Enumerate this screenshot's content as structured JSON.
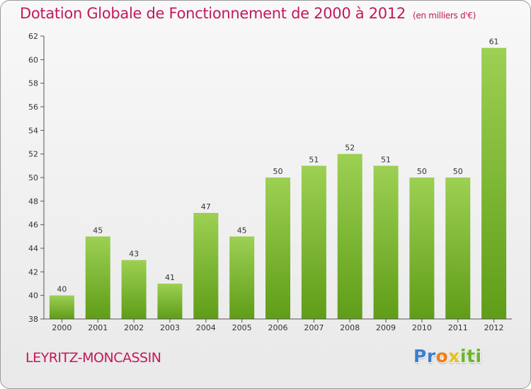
{
  "chart_data": {
    "type": "bar",
    "title": "Dotation Globale de Fonctionnement de 2000 à 2012",
    "unit_note": "(en milliers d'€)",
    "categories": [
      "2000",
      "2001",
      "2002",
      "2003",
      "2004",
      "2005",
      "2006",
      "2007",
      "2008",
      "2009",
      "2010",
      "2011",
      "2012"
    ],
    "values": [
      40,
      45,
      43,
      41,
      47,
      45,
      50,
      51,
      52,
      51,
      50,
      50,
      61
    ],
    "ylim": [
      38,
      62
    ],
    "yticks": [
      38,
      40,
      42,
      44,
      46,
      48,
      50,
      52,
      54,
      56,
      58,
      60,
      62
    ],
    "grid": false,
    "bar_color_top": "#9dd053",
    "bar_color_bottom": "#5f9d18",
    "text_color": "#c3185c"
  },
  "commune": "LEYRITZ-MONCASSIN",
  "logo": {
    "letters": [
      "P",
      "r",
      "o",
      "x",
      "i",
      "t",
      "i"
    ],
    "colors": [
      "#3a7fd0",
      "#3a7fd0",
      "#f07d1a",
      "#e7c21a",
      "#6bb52a",
      "#6bb52a",
      "#6bb52a"
    ]
  }
}
